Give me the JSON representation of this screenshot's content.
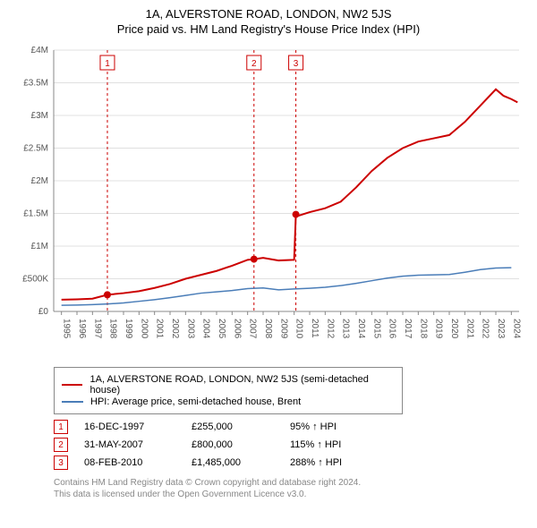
{
  "title": "1A, ALVERSTONE ROAD, LONDON, NW2 5JS",
  "subtitle": "Price paid vs. HM Land Registry's House Price Index (HPI)",
  "chart": {
    "type": "line",
    "background_color": "#ffffff",
    "grid_color": "#e0e0e0",
    "axis_color": "#888888",
    "tick_fontsize": 10,
    "xlim": [
      1994.5,
      2024.5
    ],
    "ylim": [
      0,
      4000000
    ],
    "ytick_step": 500000,
    "yticks": [
      "£0",
      "£500K",
      "£1M",
      "£1.5M",
      "£2M",
      "£2.5M",
      "£3M",
      "£3.5M",
      "£4M"
    ],
    "xticks": [
      "1995",
      "1996",
      "1997",
      "1998",
      "1999",
      "2000",
      "2001",
      "2002",
      "2003",
      "2004",
      "2005",
      "2006",
      "2007",
      "2008",
      "2009",
      "2010",
      "2011",
      "2012",
      "2013",
      "2014",
      "2015",
      "2016",
      "2017",
      "2018",
      "2019",
      "2020",
      "2021",
      "2022",
      "2023",
      "2024"
    ],
    "series": [
      {
        "name": "price_paid",
        "color": "#cc0000",
        "line_width": 2,
        "points": [
          [
            1995,
            180000
          ],
          [
            1996,
            185000
          ],
          [
            1997,
            195000
          ],
          [
            1997.96,
            255000
          ],
          [
            1998,
            256000
          ],
          [
            1999,
            280000
          ],
          [
            2000,
            310000
          ],
          [
            2001,
            360000
          ],
          [
            2002,
            420000
          ],
          [
            2003,
            500000
          ],
          [
            2004,
            560000
          ],
          [
            2005,
            620000
          ],
          [
            2006,
            700000
          ],
          [
            2007,
            790000
          ],
          [
            2007.41,
            800000
          ],
          [
            2008,
            820000
          ],
          [
            2009,
            780000
          ],
          [
            2010,
            790000
          ],
          [
            2010.11,
            1485000
          ],
          [
            2010.2,
            1460000
          ],
          [
            2011,
            1520000
          ],
          [
            2012,
            1580000
          ],
          [
            2013,
            1680000
          ],
          [
            2014,
            1900000
          ],
          [
            2015,
            2150000
          ],
          [
            2016,
            2350000
          ],
          [
            2017,
            2500000
          ],
          [
            2018,
            2600000
          ],
          [
            2019,
            2650000
          ],
          [
            2020,
            2700000
          ],
          [
            2021,
            2900000
          ],
          [
            2022,
            3150000
          ],
          [
            2023,
            3400000
          ],
          [
            2023.5,
            3300000
          ],
          [
            2024,
            3250000
          ],
          [
            2024.4,
            3200000
          ]
        ]
      },
      {
        "name": "hpi",
        "color": "#4a7db8",
        "line_width": 1.5,
        "points": [
          [
            1995,
            95000
          ],
          [
            1996,
            98000
          ],
          [
            1997,
            105000
          ],
          [
            1998,
            115000
          ],
          [
            1999,
            130000
          ],
          [
            2000,
            155000
          ],
          [
            2001,
            180000
          ],
          [
            2002,
            210000
          ],
          [
            2003,
            245000
          ],
          [
            2004,
            280000
          ],
          [
            2005,
            300000
          ],
          [
            2006,
            320000
          ],
          [
            2007,
            350000
          ],
          [
            2008,
            360000
          ],
          [
            2009,
            330000
          ],
          [
            2010,
            345000
          ],
          [
            2011,
            355000
          ],
          [
            2012,
            370000
          ],
          [
            2013,
            395000
          ],
          [
            2014,
            430000
          ],
          [
            2015,
            470000
          ],
          [
            2016,
            510000
          ],
          [
            2017,
            540000
          ],
          [
            2018,
            555000
          ],
          [
            2019,
            560000
          ],
          [
            2020,
            565000
          ],
          [
            2021,
            600000
          ],
          [
            2022,
            640000
          ],
          [
            2023,
            665000
          ],
          [
            2024,
            670000
          ]
        ]
      }
    ],
    "markers": [
      {
        "n": "1",
        "x": 1997.96,
        "y": 255000,
        "color": "#cc0000"
      },
      {
        "n": "2",
        "x": 2007.41,
        "y": 800000,
        "color": "#cc0000"
      },
      {
        "n": "3",
        "x": 2010.11,
        "y": 1485000,
        "color": "#cc0000"
      }
    ]
  },
  "legend": {
    "items": [
      {
        "color": "#cc0000",
        "label": "1A, ALVERSTONE ROAD, LONDON, NW2 5JS (semi-detached house)"
      },
      {
        "color": "#4a7db8",
        "label": "HPI: Average price, semi-detached house, Brent"
      }
    ]
  },
  "marker_rows": [
    {
      "n": "1",
      "color": "#cc0000",
      "date": "16-DEC-1997",
      "price": "£255,000",
      "hpi": "95% ↑ HPI"
    },
    {
      "n": "2",
      "color": "#cc0000",
      "date": "31-MAY-2007",
      "price": "£800,000",
      "hpi": "115% ↑ HPI"
    },
    {
      "n": "3",
      "color": "#cc0000",
      "date": "08-FEB-2010",
      "price": "£1,485,000",
      "hpi": "288% ↑ HPI"
    }
  ],
  "footer": {
    "line1": "Contains HM Land Registry data © Crown copyright and database right 2024.",
    "line2": "This data is licensed under the Open Government Licence v3.0."
  }
}
